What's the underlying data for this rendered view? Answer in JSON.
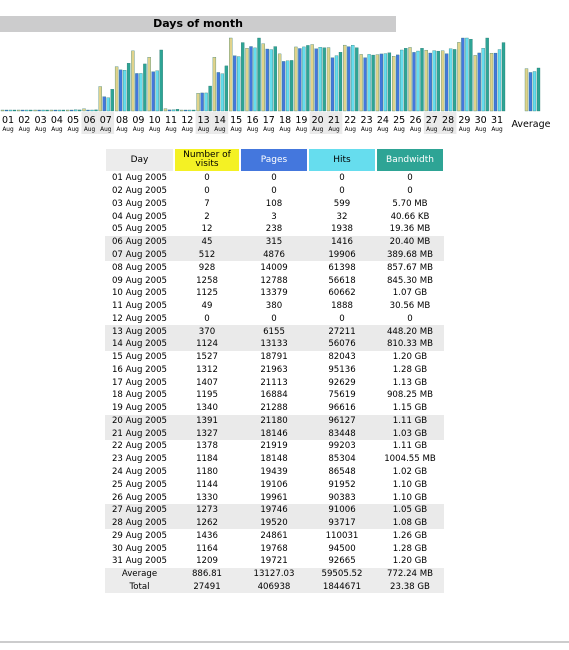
{
  "title": "Days of month",
  "colors": {
    "visits": "#e0d38b",
    "pages": "#4477dd",
    "hits": "#66ddee",
    "bandwidth": "#2ea495",
    "bar_outline": "#1b6e66",
    "header_bg": "#cccccd",
    "weekend_bg": "#eaeaea"
  },
  "chart_data": {
    "type": "bar",
    "title": "Days of month",
    "categories": [
      "01",
      "02",
      "03",
      "04",
      "05",
      "06",
      "07",
      "08",
      "09",
      "10",
      "11",
      "12",
      "13",
      "14",
      "15",
      "16",
      "17",
      "18",
      "19",
      "20",
      "21",
      "22",
      "23",
      "24",
      "25",
      "26",
      "27",
      "28",
      "29",
      "30",
      "31"
    ],
    "month_label": "Aug",
    "average_label": "Average",
    "weekend_days": [
      "06",
      "07",
      "13",
      "14",
      "20",
      "21",
      "27",
      "28"
    ],
    "series": [
      {
        "name": "Number of visits",
        "values": [
          0,
          0,
          7,
          2,
          12,
          45,
          512,
          928,
          1258,
          1125,
          49,
          0,
          370,
          1124,
          1527,
          1312,
          1407,
          1195,
          1340,
          1391,
          1327,
          1378,
          1184,
          1180,
          1144,
          1330,
          1273,
          1262,
          1436,
          1164,
          1209
        ],
        "average": 886.81
      },
      {
        "name": "Pages",
        "values": [
          0,
          0,
          108,
          3,
          238,
          315,
          4876,
          14009,
          12788,
          13379,
          380,
          0,
          6155,
          13133,
          18791,
          21963,
          21113,
          16884,
          21288,
          21180,
          18146,
          21919,
          18148,
          19439,
          19106,
          19961,
          19746,
          19520,
          24861,
          19768,
          19721
        ],
        "average": 13127.03
      },
      {
        "name": "Hits",
        "values": [
          0,
          0,
          599,
          32,
          1938,
          1416,
          19906,
          61398,
          56618,
          60662,
          1888,
          0,
          27211,
          56076,
          82043,
          95136,
          92629,
          75619,
          96616,
          96127,
          83448,
          99203,
          85304,
          86548,
          91952,
          90383,
          91006,
          93717,
          110031,
          94500,
          92665
        ],
        "average": 59505.52
      },
      {
        "name": "Bandwidth",
        "unit": "MB",
        "values": [
          0,
          0,
          5.7,
          0.0397,
          19.36,
          20.4,
          389.68,
          857.67,
          845.3,
          1095.68,
          30.56,
          0,
          448.2,
          810.33,
          1228.8,
          1310.72,
          1157.12,
          908.25,
          1177.6,
          1136.64,
          1054.72,
          1136.64,
          1004.55,
          1044.48,
          1126.4,
          1126.4,
          1075.2,
          1105.92,
          1290.24,
          1310.72,
          1228.8
        ],
        "average": 772.24
      }
    ]
  },
  "table": {
    "headers": {
      "day": "Day",
      "visits": "Number of visits",
      "pages": "Pages",
      "hits": "Hits",
      "bandwidth": "Bandwidth"
    },
    "rows": [
      [
        "01 Aug 2005",
        "0",
        "0",
        "0",
        "0"
      ],
      [
        "02 Aug 2005",
        "0",
        "0",
        "0",
        "0"
      ],
      [
        "03 Aug 2005",
        "7",
        "108",
        "599",
        "5.70 MB"
      ],
      [
        "04 Aug 2005",
        "2",
        "3",
        "32",
        "40.66 KB"
      ],
      [
        "05 Aug 2005",
        "12",
        "238",
        "1938",
        "19.36 MB"
      ],
      [
        "06 Aug 2005",
        "45",
        "315",
        "1416",
        "20.40 MB"
      ],
      [
        "07 Aug 2005",
        "512",
        "4876",
        "19906",
        "389.68 MB"
      ],
      [
        "08 Aug 2005",
        "928",
        "14009",
        "61398",
        "857.67 MB"
      ],
      [
        "09 Aug 2005",
        "1258",
        "12788",
        "56618",
        "845.30 MB"
      ],
      [
        "10 Aug 2005",
        "1125",
        "13379",
        "60662",
        "1.07 GB"
      ],
      [
        "11 Aug 2005",
        "49",
        "380",
        "1888",
        "30.56 MB"
      ],
      [
        "12 Aug 2005",
        "0",
        "0",
        "0",
        "0"
      ],
      [
        "13 Aug 2005",
        "370",
        "6155",
        "27211",
        "448.20 MB"
      ],
      [
        "14 Aug 2005",
        "1124",
        "13133",
        "56076",
        "810.33 MB"
      ],
      [
        "15 Aug 2005",
        "1527",
        "18791",
        "82043",
        "1.20 GB"
      ],
      [
        "16 Aug 2005",
        "1312",
        "21963",
        "95136",
        "1.28 GB"
      ],
      [
        "17 Aug 2005",
        "1407",
        "21113",
        "92629",
        "1.13 GB"
      ],
      [
        "18 Aug 2005",
        "1195",
        "16884",
        "75619",
        "908.25 MB"
      ],
      [
        "19 Aug 2005",
        "1340",
        "21288",
        "96616",
        "1.15 GB"
      ],
      [
        "20 Aug 2005",
        "1391",
        "21180",
        "96127",
        "1.11 GB"
      ],
      [
        "21 Aug 2005",
        "1327",
        "18146",
        "83448",
        "1.03 GB"
      ],
      [
        "22 Aug 2005",
        "1378",
        "21919",
        "99203",
        "1.11 GB"
      ],
      [
        "23 Aug 2005",
        "1184",
        "18148",
        "85304",
        "1004.55 MB"
      ],
      [
        "24 Aug 2005",
        "1180",
        "19439",
        "86548",
        "1.02 GB"
      ],
      [
        "25 Aug 2005",
        "1144",
        "19106",
        "91952",
        "1.10 GB"
      ],
      [
        "26 Aug 2005",
        "1330",
        "19961",
        "90383",
        "1.10 GB"
      ],
      [
        "27 Aug 2005",
        "1273",
        "19746",
        "91006",
        "1.05 GB"
      ],
      [
        "28 Aug 2005",
        "1262",
        "19520",
        "93717",
        "1.08 GB"
      ],
      [
        "29 Aug 2005",
        "1436",
        "24861",
        "110031",
        "1.26 GB"
      ],
      [
        "30 Aug 2005",
        "1164",
        "19768",
        "94500",
        "1.28 GB"
      ],
      [
        "31 Aug 2005",
        "1209",
        "19721",
        "92665",
        "1.20 GB"
      ]
    ],
    "weekend_rows": [
      5,
      6,
      12,
      13,
      19,
      20,
      26,
      27
    ],
    "average": [
      "Average",
      "886.81",
      "13127.03",
      "59505.52",
      "772.24 MB"
    ],
    "total": [
      "Total",
      "27491",
      "406938",
      "1844671",
      "23.38 GB"
    ]
  }
}
